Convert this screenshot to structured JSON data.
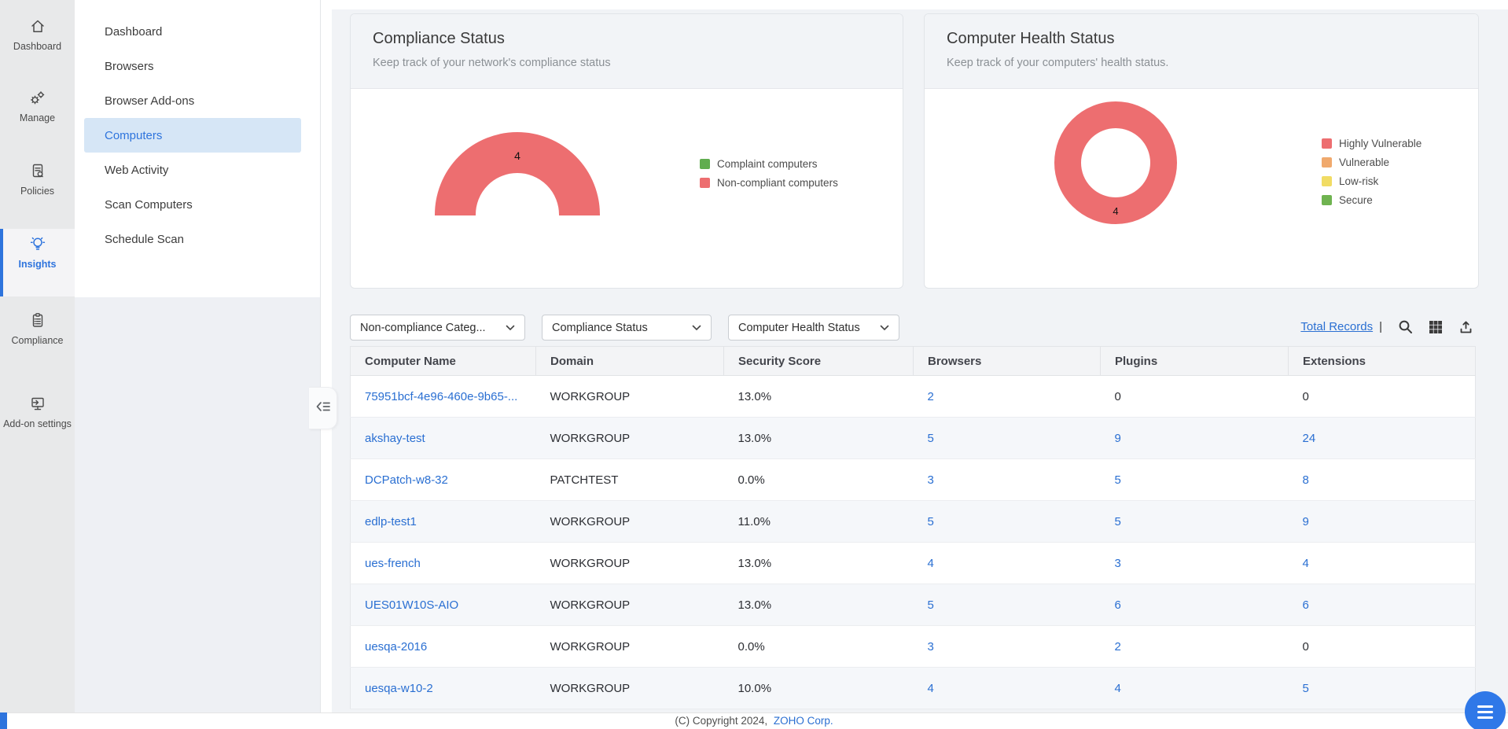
{
  "rail": {
    "items": [
      {
        "label": "Dashboard",
        "icon": "home-icon",
        "active": false
      },
      {
        "label": "Manage",
        "icon": "manage-gears-icon",
        "active": false
      },
      {
        "label": "Policies",
        "icon": "policies-document-icon",
        "active": false
      },
      {
        "label": "Insights",
        "icon": "insights-bulb-icon",
        "active": true
      },
      {
        "label": "Compliance",
        "icon": "compliance-clipboard-icon",
        "active": false
      },
      {
        "label": "Add-on settings",
        "icon": "addon-settings-icon",
        "active": false
      }
    ]
  },
  "sidebar": {
    "items": [
      {
        "label": "Dashboard",
        "active": false
      },
      {
        "label": "Browsers",
        "active": false
      },
      {
        "label": "Browser Add-ons",
        "active": false
      },
      {
        "label": "Computers",
        "active": true
      },
      {
        "label": "Web Activity",
        "active": false
      },
      {
        "label": "Scan Computers",
        "active": false
      },
      {
        "label": "Schedule Scan",
        "active": false
      }
    ]
  },
  "cards": [
    {
      "title": "Compliance Status",
      "subtitle": "Keep track of your network's compliance status",
      "chart": {
        "type": "half-donut",
        "value_label": "4",
        "ring_color": "#ed6e70",
        "legend": [
          {
            "label": "Complaint computers",
            "color": "#60ad4f"
          },
          {
            "label": "Non-compliant computers",
            "color": "#ed6e70"
          }
        ]
      }
    },
    {
      "title": "Computer Health Status",
      "subtitle": "Keep track of your computers' health status.",
      "chart": {
        "type": "donut",
        "value_label": "4",
        "ring_color": "#ed6e70",
        "legend": [
          {
            "label": "Highly Vulnerable",
            "color": "#ed6e70"
          },
          {
            "label": "Vulnerable",
            "color": "#f0a96d"
          },
          {
            "label": "Low-risk",
            "color": "#f1dc64"
          },
          {
            "label": "Secure",
            "color": "#6fb350"
          }
        ]
      }
    }
  ],
  "chart_data": [
    {
      "type": "pie",
      "variant": "half-donut",
      "title": "Compliance Status",
      "center_label": "4",
      "series": [
        {
          "name": "Complaint computers",
          "value": 0,
          "color": "#60ad4f"
        },
        {
          "name": "Non-compliant computers",
          "value": 4,
          "color": "#ed6e70"
        }
      ],
      "legend_position": "right"
    },
    {
      "type": "pie",
      "variant": "donut",
      "title": "Computer Health Status",
      "center_label": "4",
      "series": [
        {
          "name": "Highly Vulnerable",
          "value": 4,
          "color": "#ed6e70"
        },
        {
          "name": "Vulnerable",
          "value": 0,
          "color": "#f0a96d"
        },
        {
          "name": "Low-risk",
          "value": 0,
          "color": "#f1dc64"
        },
        {
          "name": "Secure",
          "value": 0,
          "color": "#6fb350"
        }
      ],
      "legend_position": "right"
    }
  ],
  "filters": [
    {
      "label": "Non-compliance Categ..."
    },
    {
      "label": "Compliance Status"
    },
    {
      "label": "Computer Health Status"
    }
  ],
  "toolbar": {
    "total_records": "Total Records",
    "separator": "|"
  },
  "table": {
    "columns": [
      "Computer Name",
      "Domain",
      "Security Score",
      "Browsers",
      "Plugins",
      "Extensions"
    ],
    "rows": [
      {
        "name": "75951bcf-4e96-460e-9b65-...",
        "domain": "WORKGROUP",
        "score": "13.0%",
        "browsers": {
          "v": "2",
          "link": true
        },
        "plugins": {
          "v": "0",
          "link": false
        },
        "extensions": {
          "v": "0",
          "link": false
        }
      },
      {
        "name": "akshay-test",
        "domain": "WORKGROUP",
        "score": "13.0%",
        "browsers": {
          "v": "5",
          "link": true
        },
        "plugins": {
          "v": "9",
          "link": true
        },
        "extensions": {
          "v": "24",
          "link": true
        }
      },
      {
        "name": "DCPatch-w8-32",
        "domain": "PATCHTEST",
        "score": "0.0%",
        "browsers": {
          "v": "3",
          "link": true
        },
        "plugins": {
          "v": "5",
          "link": true
        },
        "extensions": {
          "v": "8",
          "link": true
        }
      },
      {
        "name": "edlp-test1",
        "domain": "WORKGROUP",
        "score": "11.0%",
        "browsers": {
          "v": "5",
          "link": true
        },
        "plugins": {
          "v": "5",
          "link": true
        },
        "extensions": {
          "v": "9",
          "link": true
        }
      },
      {
        "name": "ues-french",
        "domain": "WORKGROUP",
        "score": "13.0%",
        "browsers": {
          "v": "4",
          "link": true
        },
        "plugins": {
          "v": "3",
          "link": true
        },
        "extensions": {
          "v": "4",
          "link": true
        }
      },
      {
        "name": "UES01W10S-AIO",
        "domain": "WORKGROUP",
        "score": "13.0%",
        "browsers": {
          "v": "5",
          "link": true
        },
        "plugins": {
          "v": "6",
          "link": true
        },
        "extensions": {
          "v": "6",
          "link": true
        }
      },
      {
        "name": "uesqa-2016",
        "domain": "WORKGROUP",
        "score": "0.0%",
        "browsers": {
          "v": "3",
          "link": true
        },
        "plugins": {
          "v": "2",
          "link": true
        },
        "extensions": {
          "v": "0",
          "link": false
        }
      },
      {
        "name": "uesqa-w10-2",
        "domain": "WORKGROUP",
        "score": "10.0%",
        "browsers": {
          "v": "4",
          "link": true
        },
        "plugins": {
          "v": "4",
          "link": true
        },
        "extensions": {
          "v": "5",
          "link": true
        }
      }
    ]
  },
  "footer": {
    "copyright_prefix": "(C) Copyright 2024,",
    "company_link": "ZOHO Corp."
  }
}
